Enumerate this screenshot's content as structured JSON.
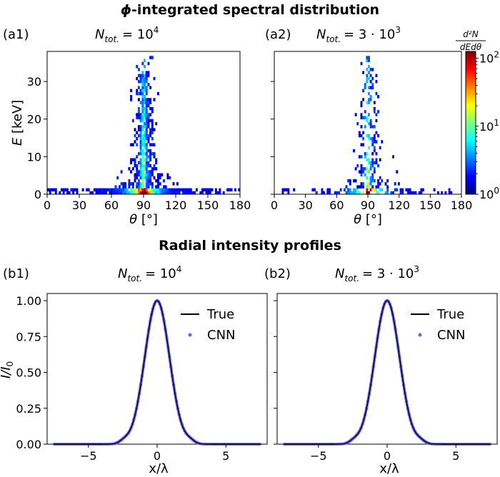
{
  "section_titles": {
    "a_prefix": "ϕ",
    "a_rest": "-integrated spectral distribution",
    "b": "Radial intensity profiles"
  },
  "panels": {
    "a1": {
      "tag": "(a1)",
      "n_sym": "N",
      "n_sub": "tot.",
      "n_eq": "= 10",
      "n_exp": "4"
    },
    "a2": {
      "tag": "(a2)",
      "n_sym": "N",
      "n_sub": "tot.",
      "n_eq": "= 3 · 10",
      "n_exp": "3"
    },
    "b1": {
      "tag": "(b1)",
      "n_sym": "N",
      "n_sub": "tot.",
      "n_eq": "= 10",
      "n_exp": "4"
    },
    "b2": {
      "tag": "(b2)",
      "n_sym": "N",
      "n_sub": "tot.",
      "n_eq": "= 3 · 10",
      "n_exp": "3"
    }
  },
  "colorbar": {
    "label_num": "d²N",
    "label_den": "dEdθ",
    "ticks": [
      {
        "base": "10",
        "exp": "0"
      },
      {
        "base": "10",
        "exp": "1"
      },
      {
        "base": "10",
        "exp": "2"
      }
    ],
    "range_log": [
      0,
      2.1
    ]
  },
  "chart_data": [
    {
      "id": "a1",
      "type": "heatmap",
      "xlabel_sym": "θ",
      "xlabel_unit": "[°]",
      "ylabel_sym": "E",
      "ylabel_unit": "[keV]",
      "xlim": [
        0,
        180
      ],
      "ylim": [
        0,
        38
      ],
      "xticks": [
        "0",
        "30",
        "60",
        "90",
        "120",
        "150",
        "180"
      ],
      "yticks": [
        "0",
        "10",
        "20",
        "30"
      ],
      "peak_theta": 90,
      "max_energy": 37,
      "log_scale_color": true
    },
    {
      "id": "a2",
      "type": "heatmap",
      "xlabel_sym": "θ",
      "xlabel_unit": "[°]",
      "xlim": [
        0,
        180
      ],
      "ylim": [
        0,
        38
      ],
      "xticks": [
        "0",
        "30",
        "60",
        "90",
        "120",
        "150",
        "180"
      ],
      "peak_theta": 90,
      "max_energy": 37,
      "log_scale_color": true
    },
    {
      "id": "b1",
      "type": "line",
      "xlabel": "x/λ",
      "ylabel_sym": "I/I",
      "ylabel_sub": "0",
      "xlim": [
        -8,
        8
      ],
      "ylim": [
        0,
        1.05
      ],
      "xticks": [
        "−5",
        "0",
        "5"
      ],
      "yticks": [
        "0.00",
        "0.25",
        "0.50",
        "0.75",
        "1.00"
      ],
      "series": [
        {
          "name": "True",
          "style": "line",
          "color": "#000000"
        },
        {
          "name": "CNN",
          "style": "points",
          "color": "#6666ff"
        }
      ],
      "profile_sigma": 0.9,
      "x_range": [
        -7.5,
        7.5
      ]
    },
    {
      "id": "b2",
      "type": "line",
      "xlabel": "x/λ",
      "xlim": [
        -8,
        8
      ],
      "ylim": [
        0,
        1.05
      ],
      "xticks": [
        "−5",
        "0",
        "5"
      ],
      "series": [
        {
          "name": "True",
          "style": "line",
          "color": "#000000"
        },
        {
          "name": "CNN",
          "style": "points",
          "color": "#6666ff"
        }
      ],
      "profile_sigma": 0.9,
      "x_range": [
        -7.5,
        7.5
      ]
    }
  ]
}
